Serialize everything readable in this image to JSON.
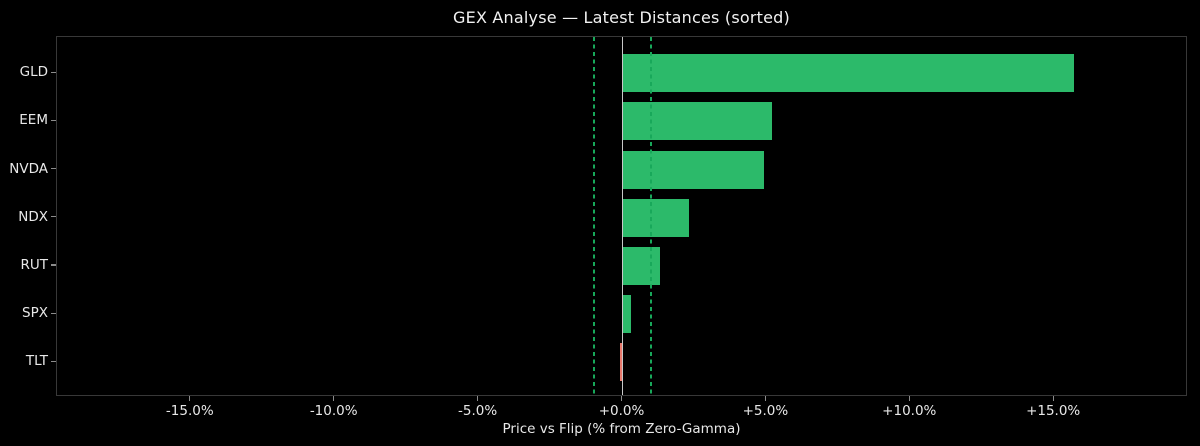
{
  "title": "GEX Analyse — Latest Distances (sorted)",
  "chart_data": {
    "type": "bar",
    "orientation": "horizontal",
    "title": "GEX Analyse — Latest Distances (sorted)",
    "xlabel": "Price vs Flip (% from Zero-Gamma)",
    "ylabel": "",
    "categories": [
      "GLD",
      "EEM",
      "NVDA",
      "NDX",
      "RUT",
      "SPX",
      "TLT"
    ],
    "values": [
      15.7,
      5.2,
      4.9,
      2.3,
      1.3,
      0.3,
      -0.07
    ],
    "unit": "%",
    "xlim": [
      -19.65,
      19.65
    ],
    "x_ticks": [
      -15,
      -10,
      -5,
      0,
      5,
      10,
      15
    ],
    "x_tick_labels": [
      "-15.0%",
      "-10.0%",
      "-5.0%",
      "+0.0%",
      "+5.0%",
      "+10.0%",
      "+15.0%"
    ],
    "reference_lines": [
      {
        "name": "zero-gamma-line",
        "x": 0.0,
        "style": "solid",
        "color": "#c8c8c8"
      },
      {
        "name": "threshold-line-lower",
        "x": -1.0,
        "style": "dashed",
        "color": "#18a85a"
      },
      {
        "name": "threshold-line-upper",
        "x": 1.0,
        "style": "dashed",
        "color": "#18a85a"
      }
    ],
    "grid": false,
    "legend": false,
    "colors": {
      "positive_bar": "#2cba6a",
      "negative_bar": "#e8796c",
      "background": "#000000",
      "spine": "#383838",
      "tick_mark": "#8c8c8c",
      "tick_label": "#e8e8e8",
      "title_text": "#f2f2f2"
    }
  }
}
